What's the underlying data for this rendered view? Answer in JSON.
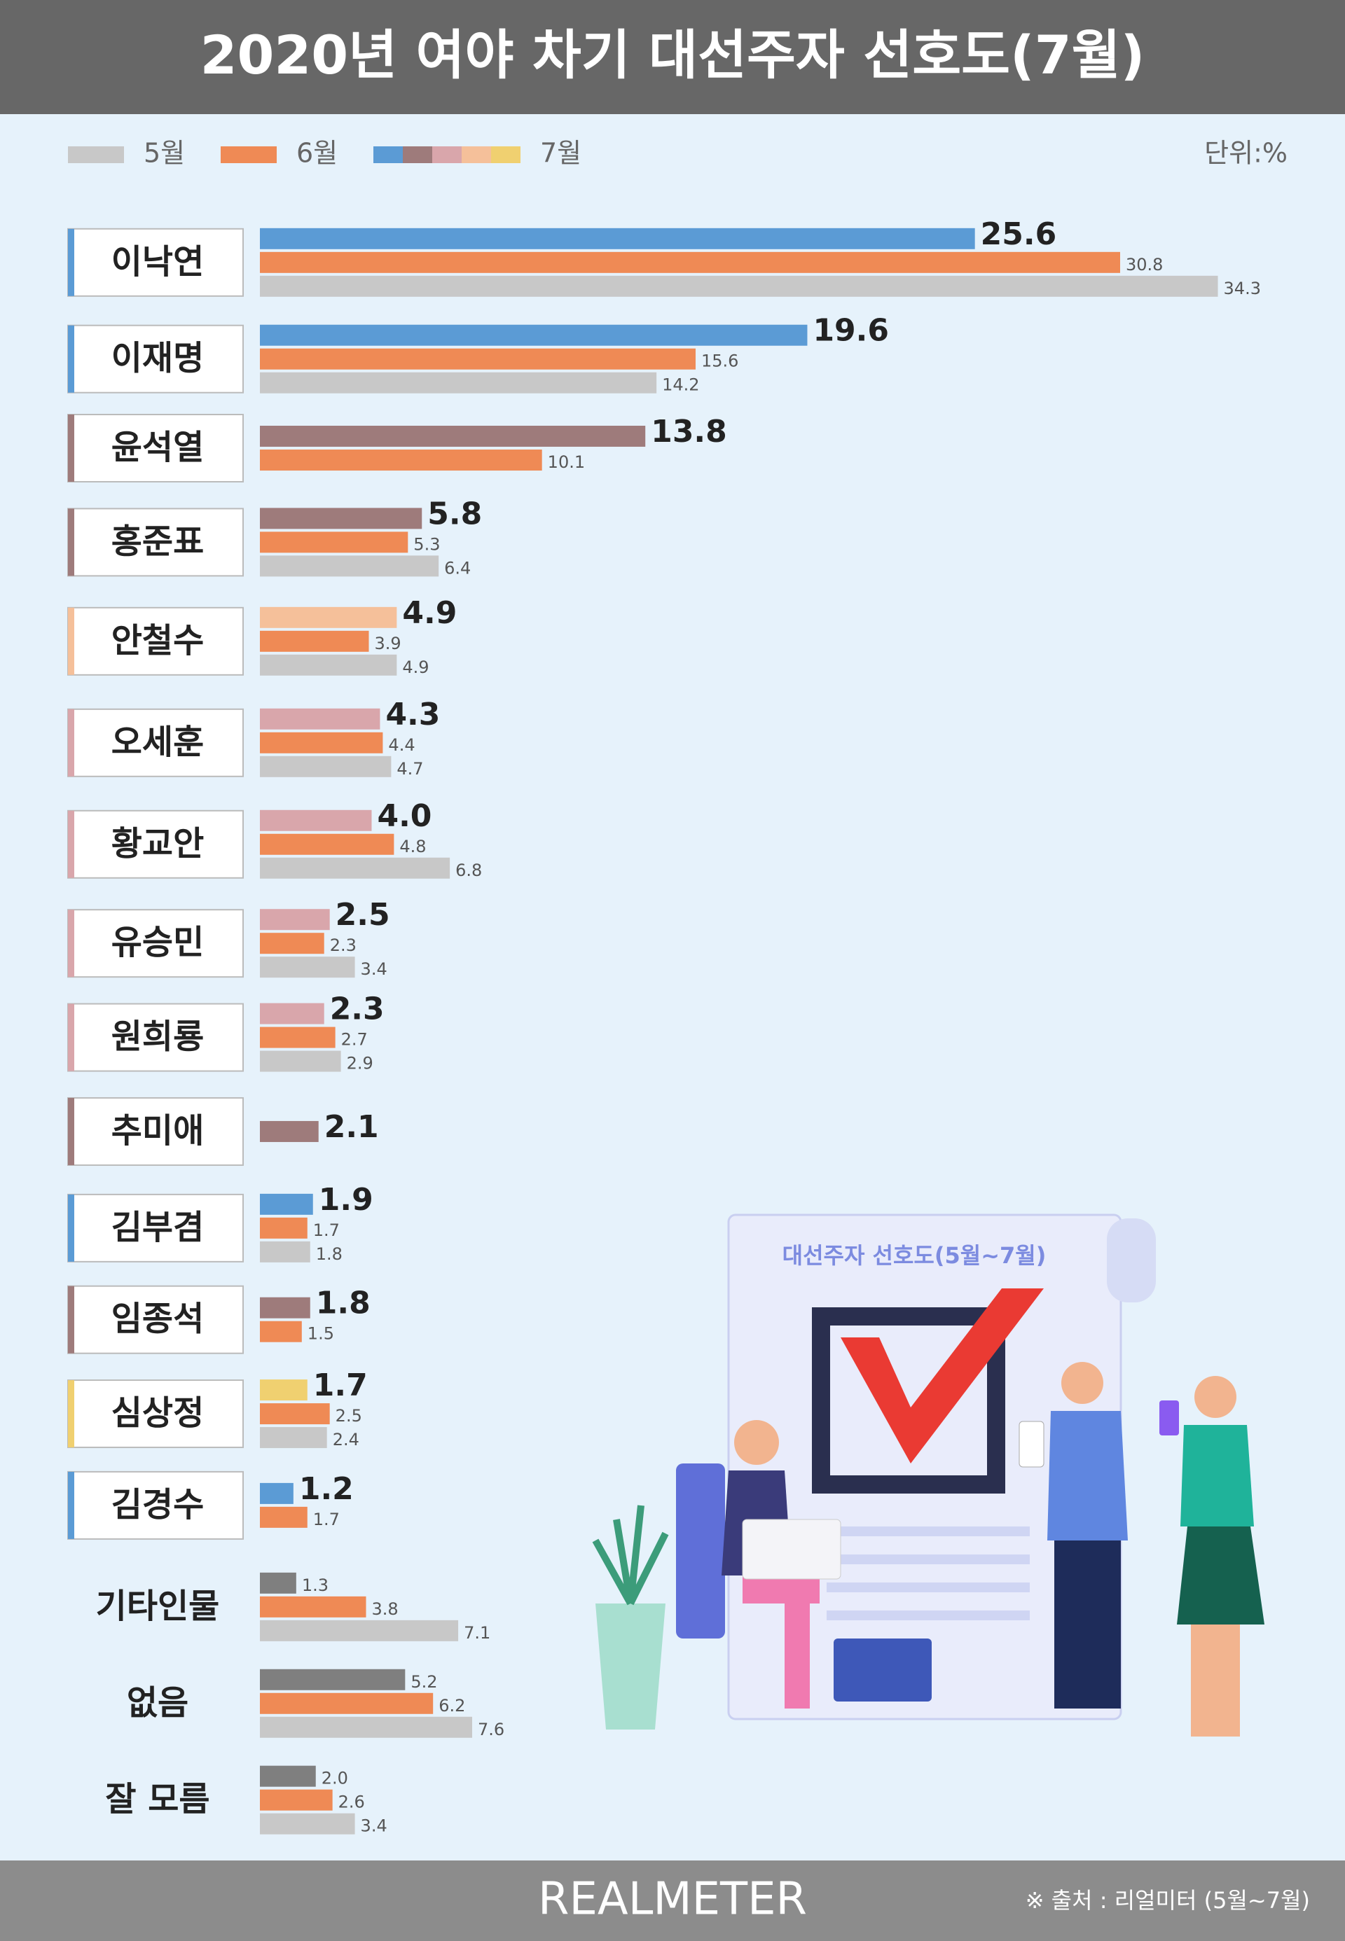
{
  "chart_data": {
    "type": "hbar",
    "title": "2020년 여야 차기 대선주자 선호도(7월)",
    "unit": "단위:%",
    "categories": [
      "이낙연",
      "이재명",
      "윤석열",
      "홍준표",
      "안철수",
      "오세훈",
      "황교안",
      "유승민",
      "원희룡",
      "추미애",
      "김부겸",
      "임종석",
      "심상정",
      "김경수",
      "기타인물",
      "없음",
      "잘 모름"
    ],
    "series": [
      {
        "name": "5월",
        "color": "#c8c8c8",
        "values": [
          34.3,
          14.2,
          null,
          6.4,
          4.9,
          4.7,
          6.8,
          3.4,
          2.9,
          null,
          1.8,
          null,
          2.4,
          null,
          7.1,
          7.6,
          3.4
        ]
      },
      {
        "name": "6월",
        "color": "#ef8a55",
        "values": [
          30.8,
          15.6,
          10.1,
          5.3,
          3.9,
          4.4,
          4.8,
          2.3,
          2.7,
          null,
          1.7,
          1.5,
          2.5,
          1.7,
          3.8,
          6.2,
          2.6
        ]
      },
      {
        "name": "7월",
        "legend_colors": [
          "#5b9bd5",
          "#9e7b7b",
          "#d9a6ab",
          "#f5c09a",
          "#f0d070"
        ],
        "colors": [
          "#5b9bd5",
          "#5b9bd5",
          "#9e7b7b",
          "#9e7b7b",
          "#f5c09a",
          "#d9a6ab",
          "#d9a6ab",
          "#d9a6ab",
          "#d9a6ab",
          "#9e7b7b",
          "#5b9bd5",
          "#9e7b7b",
          "#f0d070",
          "#5b9bd5",
          "#7f7f7f",
          "#7f7f7f",
          "#7f7f7f"
        ],
        "values": [
          25.6,
          19.6,
          13.8,
          5.8,
          4.9,
          4.3,
          4.0,
          2.5,
          2.3,
          2.1,
          1.9,
          1.8,
          1.7,
          1.2,
          1.3,
          5.2,
          2.0
        ],
        "value_labels": [
          "25.6",
          "19.6",
          "13.8",
          "5.8",
          "4.9",
          "4.3",
          "4.0",
          "2.5",
          "2.3",
          "2.1",
          "1.9",
          "1.8",
          "1.7",
          "1.2",
          "1.3",
          "5.2",
          "2.0"
        ]
      }
    ]
  },
  "illustration": {
    "caption": "대선주자 선호도(5월~7월)"
  },
  "footer": {
    "brand": "REALMETER",
    "source": "※ 출처 : 리얼미터 (5월~7월)"
  }
}
